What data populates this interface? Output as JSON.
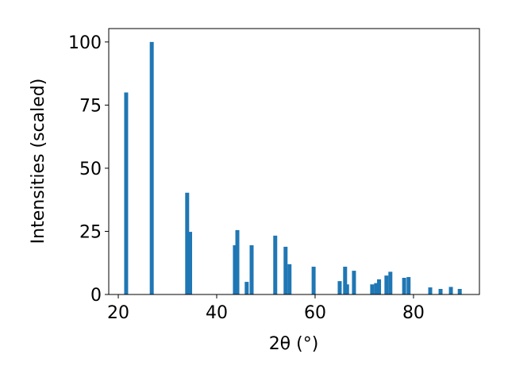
{
  "chart_data": {
    "type": "bar",
    "x_label": "2θ (°)",
    "y_label": "Intensities (scaled)",
    "x": [
      21.6,
      26.8,
      34.0,
      34.6,
      43.7,
      44.2,
      46.1,
      47.1,
      51.9,
      54.0,
      54.8,
      59.7,
      65.0,
      66.1,
      66.5,
      67.9,
      71.6,
      72.4,
      73.0,
      74.5,
      75.3,
      78.1,
      79.0,
      83.4,
      85.5,
      87.6,
      89.4
    ],
    "values": [
      80,
      100,
      40.3,
      24.8,
      19.5,
      25.5,
      5,
      19.5,
      23.3,
      18.9,
      12,
      11,
      5.3,
      11,
      4,
      9.4,
      4,
      4.5,
      6,
      7.5,
      9,
      6.6,
      6.9,
      2.8,
      2.2,
      3,
      2.2
    ],
    "color": "#1f77b4",
    "xlim": [
      18.06,
      93.4
    ],
    "xticks": [
      20,
      40,
      60,
      80
    ],
    "ylim": [
      0,
      105.3
    ],
    "yticks": [
      0,
      25,
      50,
      75,
      100
    ]
  }
}
